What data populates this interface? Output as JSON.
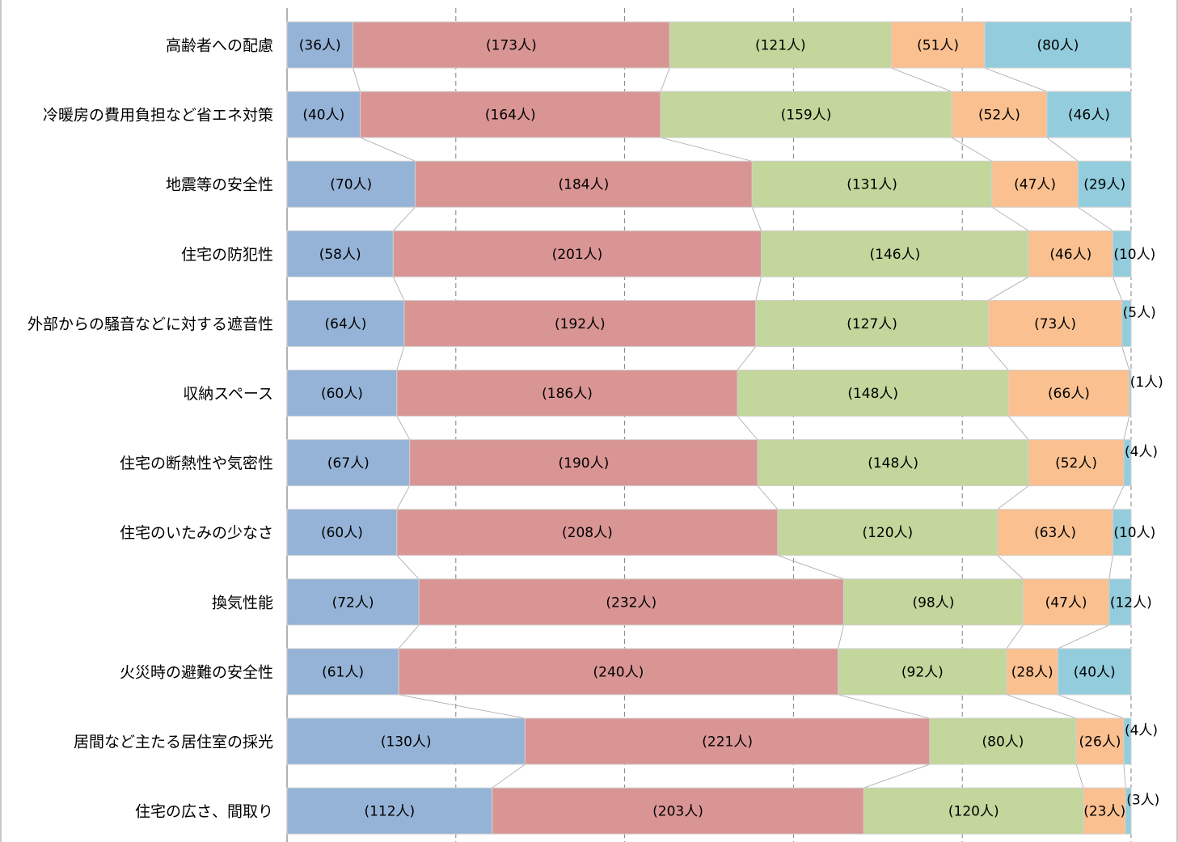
{
  "chart_data": {
    "type": "bar",
    "orientation": "horizontal",
    "stacking": "percent",
    "title": "",
    "xlabel": "",
    "ylabel": "",
    "grid": true,
    "legend": "none",
    "series_lines": true,
    "categories": [
      "高齢者への配慮",
      "冷暖房の費用負担など省エネ対策",
      "地震等の安全性",
      "住宅の防犯性",
      "外部からの騒音などに対する遮音性",
      "収納スペース",
      "住宅の断熱性や気密性",
      "住宅のいたみの少なさ",
      "換気性能",
      "火災時の避難の安全性",
      "居間など主たる居住室の採光",
      "住宅の広さ、間取り"
    ],
    "series": [
      {
        "color": "#95b3d7",
        "values": [
          36,
          40,
          70,
          58,
          64,
          60,
          67,
          60,
          72,
          61,
          130,
          112
        ]
      },
      {
        "color": "#d99594",
        "values": [
          173,
          164,
          184,
          201,
          192,
          186,
          190,
          208,
          232,
          240,
          221,
          203
        ]
      },
      {
        "color": "#c3d69b",
        "values": [
          121,
          159,
          131,
          146,
          127,
          148,
          148,
          120,
          98,
          92,
          80,
          120
        ]
      },
      {
        "color": "#fac090",
        "values": [
          51,
          52,
          47,
          46,
          73,
          66,
          52,
          63,
          47,
          28,
          26,
          23
        ]
      },
      {
        "color": "#93cddd",
        "values": [
          80,
          46,
          29,
          10,
          5,
          1,
          4,
          10,
          12,
          40,
          4,
          3
        ]
      }
    ],
    "data_labels": [
      [
        "(36人)",
        "(173人)",
        "(121人)",
        "(51人)",
        "(80人)"
      ],
      [
        "(40人)",
        "(164人)",
        "(159人)",
        "(52人)",
        "(46人)"
      ],
      [
        "(70人)",
        "(184人)",
        "(131人)",
        "(47人)",
        "(29人)"
      ],
      [
        "(58人)",
        "(201人)",
        "(146人)",
        "(46人)",
        "(10人)"
      ],
      [
        "(64人)",
        "(192人)",
        "(127人)",
        "(73人)",
        "(5人)"
      ],
      [
        "(60人)",
        "(186人)",
        "(148人)",
        "(66人)",
        "(1人)"
      ],
      [
        "(67人)",
        "(190人)",
        "(148人)",
        "(52人)",
        "(4人)"
      ],
      [
        "(60人)",
        "(208人)",
        "(120人)",
        "(63人)",
        "(10人)"
      ],
      [
        "(72人)",
        "(232人)",
        "(98人)",
        "(47人)",
        "(12人)"
      ],
      [
        "(61人)",
        "(240人)",
        "(92人)",
        "(28人)",
        "(40人)"
      ],
      [
        "(130人)",
        "(221人)",
        "(80人)",
        "(26人)",
        "(4人)"
      ],
      [
        "(112人)",
        "(203人)",
        "(120人)",
        "(23人)",
        "(3人)"
      ]
    ],
    "xlim": [
      0,
      100
    ],
    "gridlines": [
      0,
      20,
      40,
      60,
      80,
      100
    ]
  }
}
